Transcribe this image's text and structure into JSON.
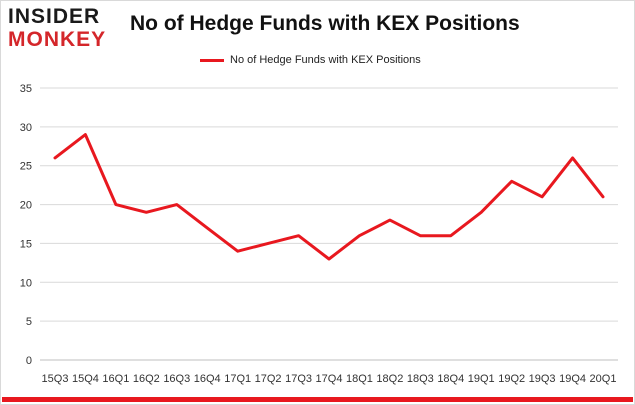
{
  "logo": {
    "top": "INSIDER",
    "bottom": "MONKEY"
  },
  "title": "No of Hedge Funds with KEX Positions",
  "chart_data": {
    "type": "line",
    "title": "No of Hedge Funds with KEX Positions",
    "xlabel": "",
    "ylabel": "",
    "categories": [
      "15Q3",
      "15Q4",
      "16Q1",
      "16Q2",
      "16Q3",
      "16Q4",
      "17Q1",
      "17Q2",
      "17Q3",
      "17Q4",
      "18Q1",
      "18Q2",
      "18Q3",
      "18Q4",
      "19Q1",
      "19Q2",
      "19Q3",
      "19Q4",
      "20Q1"
    ],
    "series": [
      {
        "name": "No of Hedge Funds with KEX Positions",
        "values": [
          26,
          29,
          20,
          19,
          20,
          17,
          14,
          15,
          16,
          13,
          16,
          18,
          16,
          16,
          19,
          23,
          21,
          26,
          21
        ]
      }
    ],
    "ylim": [
      0,
      35
    ],
    "yticks": [
      0,
      5,
      10,
      15,
      20,
      25,
      30,
      35
    ],
    "grid": true,
    "legend": "top-center",
    "line_color": "#e8181f",
    "grid_color": "#d9d9d9"
  }
}
